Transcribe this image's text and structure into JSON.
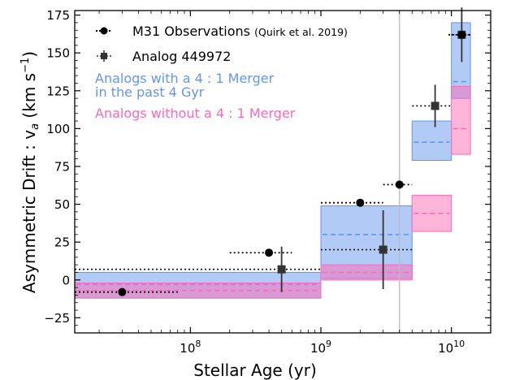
{
  "chart_data": {
    "type": "scatter",
    "xlabel": "Stellar Age (yr)",
    "ylabel": "Asymmetric Drift : v",
    "ylabel_sub": "a",
    "ylabel_unit_open": " (km s",
    "ylabel_unit_exp": "−1",
    "ylabel_unit_close": ")",
    "x_scale": "log",
    "xlim": [
      13000000,
      20000000000
    ],
    "ylim": [
      -35,
      178
    ],
    "x_ticks": [
      {
        "value": 100000000,
        "base": "10",
        "exp": "8"
      },
      {
        "value": 1000000000,
        "base": "10",
        "exp": "9"
      },
      {
        "value": 10000000000,
        "base": "10",
        "exp": "10"
      }
    ],
    "y_ticks": [
      {
        "value": -25,
        "label": "−25"
      },
      {
        "value": 0,
        "label": "0"
      },
      {
        "value": 25,
        "label": "25"
      },
      {
        "value": 50,
        "label": "50"
      },
      {
        "value": 75,
        "label": "75"
      },
      {
        "value": 100,
        "label": "100"
      },
      {
        "value": 125,
        "label": "125"
      },
      {
        "value": 150,
        "label": "150"
      },
      {
        "value": 175,
        "label": "175"
      }
    ],
    "vertical_line_x": 4000000000,
    "colors": {
      "merger": "#6495ed",
      "no_merger": "#ff69b4",
      "observations": "#000000",
      "analog": "#333333",
      "vline": "#bbbbbb"
    },
    "bands": [
      {
        "x_range": [
          13000000,
          1000000000
        ],
        "merger": {
          "low": -12,
          "median": -3,
          "high": 5
        },
        "no_merger": {
          "low": -12,
          "median": -7,
          "high": -2
        }
      },
      {
        "x_range": [
          1000000000,
          5000000000
        ],
        "merger": {
          "low": 1,
          "median": 30,
          "high": 49
        },
        "no_merger": {
          "low": 0,
          "median": 5,
          "high": 10
        }
      },
      {
        "x_range": [
          5000000000,
          10000000000
        ],
        "merger": {
          "low": 79,
          "median": 91,
          "high": 105
        },
        "no_merger": {
          "low": 32,
          "median": 44,
          "high": 56
        }
      },
      {
        "x_range": [
          10000000000,
          14000000000
        ],
        "merger": {
          "low": 120,
          "median": 131,
          "high": 170
        },
        "no_merger": {
          "low": 83,
          "median": 100,
          "high": 128
        }
      }
    ],
    "series": [
      {
        "name": "M31 Observations",
        "citation": "(Quirk et al. 2019)",
        "marker": "circle",
        "points": [
          {
            "x": 30000000,
            "y": -8,
            "x_low": 13000000,
            "x_high": 80000000,
            "y_err": 0
          },
          {
            "x": 400000000,
            "y": 18,
            "x_low": 200000000,
            "x_high": 600000000,
            "y_err": 0
          },
          {
            "x": 2000000000,
            "y": 51,
            "x_low": 1000000000,
            "x_high": 3000000000,
            "y_err": 0
          },
          {
            "x": 4000000000,
            "y": 63,
            "x_low": 3000000000,
            "x_high": 5000000000,
            "y_err": 0
          },
          {
            "x": 12000000000,
            "y": 162,
            "x_low": 9500000000,
            "x_high": 14000000000,
            "y_err": 0
          }
        ]
      },
      {
        "name": "Analog 449972",
        "marker": "square",
        "points": [
          {
            "x": 500000000,
            "y": 7,
            "x_low": 13000000,
            "x_high": 1000000000,
            "y_err": 15
          },
          {
            "x": 3000000000,
            "y": 20,
            "x_low": 1000000000,
            "x_high": 5000000000,
            "y_err": 26
          },
          {
            "x": 7500000000,
            "y": 115,
            "x_low": 5000000000,
            "x_high": 10000000000,
            "y_err": 14
          },
          {
            "x": 12000000000,
            "y": 162,
            "x_low": 10000000000,
            "x_high": 14000000000,
            "y_err": 18
          }
        ]
      }
    ],
    "legend": {
      "placement": "top-left",
      "obs_label": "M31 Observations",
      "obs_citation": "(Quirk et al. 2019)",
      "analog_label": "Analog 449972",
      "merger_line1": "Analogs with a 4 : 1 Merger",
      "merger_line2": "in the past 4 Gyr",
      "no_merger_label": "Analogs without a 4 : 1 Merger"
    }
  }
}
